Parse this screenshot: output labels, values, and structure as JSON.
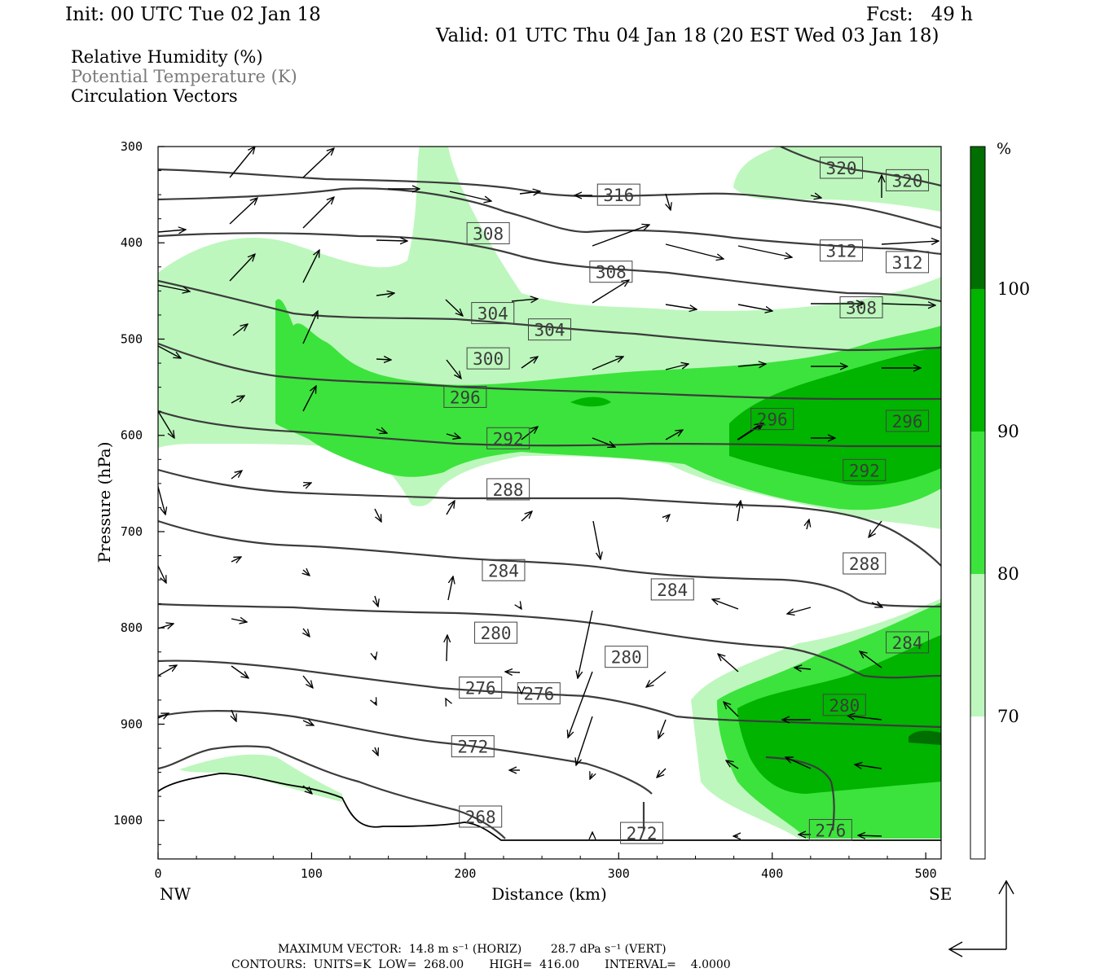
{
  "header": {
    "init": "Init: 00 UTC Tue 02 Jan 18",
    "fcst": "Fcst:   49 h",
    "valid": "Valid: 01 UTC Thu 04 Jan 18 (20 EST Wed 03 Jan 18)"
  },
  "legend": {
    "rh": "Relative Humidity (%)",
    "theta": "Potential Temperature (K)",
    "vectors": "Circulation Vectors"
  },
  "colors": {
    "rh_70": "#bdf7bd",
    "rh_80": "#3ce33c",
    "rh_90": "#00b400",
    "rh_100": "#006e00",
    "contour": "#3c3c3c",
    "legend_secondary": "#7a7a7a"
  },
  "footer": {
    "max_vector": "MAXIMUM VECTOR:  14.8 m s⁻¹ (HORIZ)        28.7 dPa s⁻¹ (VERT)",
    "contours": "CONTOURS:  UNITS=K  LOW=  268.00       HIGH=  416.00       INTERVAL=    4.0000"
  },
  "chart_data": {
    "type": "contour",
    "xlabel": "Distance (km)",
    "ylabel": "Pressure (hPa)",
    "xlim": [
      0,
      510
    ],
    "ylim": [
      1040,
      300
    ],
    "x_ticks": [
      0,
      100,
      200,
      300,
      400,
      500
    ],
    "y_ticks": [
      300,
      400,
      500,
      600,
      700,
      800,
      900,
      1000
    ],
    "x_endpoints": [
      "NW",
      "SE"
    ],
    "colorbar": {
      "unit": "%",
      "levels": [
        70,
        80,
        90,
        100
      ],
      "level_labels": [
        "70",
        "80",
        "90",
        "100"
      ]
    },
    "contour_labels": [
      {
        "value": "320",
        "x": 445,
        "p": 322
      },
      {
        "value": "320",
        "x": 488,
        "p": 335
      },
      {
        "value": "316",
        "x": 300,
        "p": 350
      },
      {
        "value": "312",
        "x": 445,
        "p": 408
      },
      {
        "value": "312",
        "x": 488,
        "p": 420
      },
      {
        "value": "308",
        "x": 215,
        "p": 390
      },
      {
        "value": "308",
        "x": 295,
        "p": 430
      },
      {
        "value": "308",
        "x": 458,
        "p": 467
      },
      {
        "value": "304",
        "x": 218,
        "p": 473
      },
      {
        "value": "304",
        "x": 255,
        "p": 490
      },
      {
        "value": "300",
        "x": 215,
        "p": 520
      },
      {
        "value": "296",
        "x": 200,
        "p": 560
      },
      {
        "value": "296",
        "x": 400,
        "p": 583
      },
      {
        "value": "296",
        "x": 488,
        "p": 585
      },
      {
        "value": "292",
        "x": 228,
        "p": 603
      },
      {
        "value": "292",
        "x": 460,
        "p": 636
      },
      {
        "value": "288",
        "x": 228,
        "p": 656
      },
      {
        "value": "288",
        "x": 460,
        "p": 733
      },
      {
        "value": "284",
        "x": 225,
        "p": 740
      },
      {
        "value": "284",
        "x": 335,
        "p": 760
      },
      {
        "value": "284",
        "x": 488,
        "p": 815
      },
      {
        "value": "280",
        "x": 220,
        "p": 805
      },
      {
        "value": "280",
        "x": 305,
        "p": 830
      },
      {
        "value": "280",
        "x": 447,
        "p": 880
      },
      {
        "value": "276",
        "x": 210,
        "p": 862
      },
      {
        "value": "276",
        "x": 248,
        "p": 868
      },
      {
        "value": "276",
        "x": 438,
        "p": 1010
      },
      {
        "value": "272",
        "x": 205,
        "p": 923
      },
      {
        "value": "272",
        "x": 315,
        "p": 1013
      },
      {
        "value": "268",
        "x": 210,
        "p": 996
      }
    ]
  }
}
